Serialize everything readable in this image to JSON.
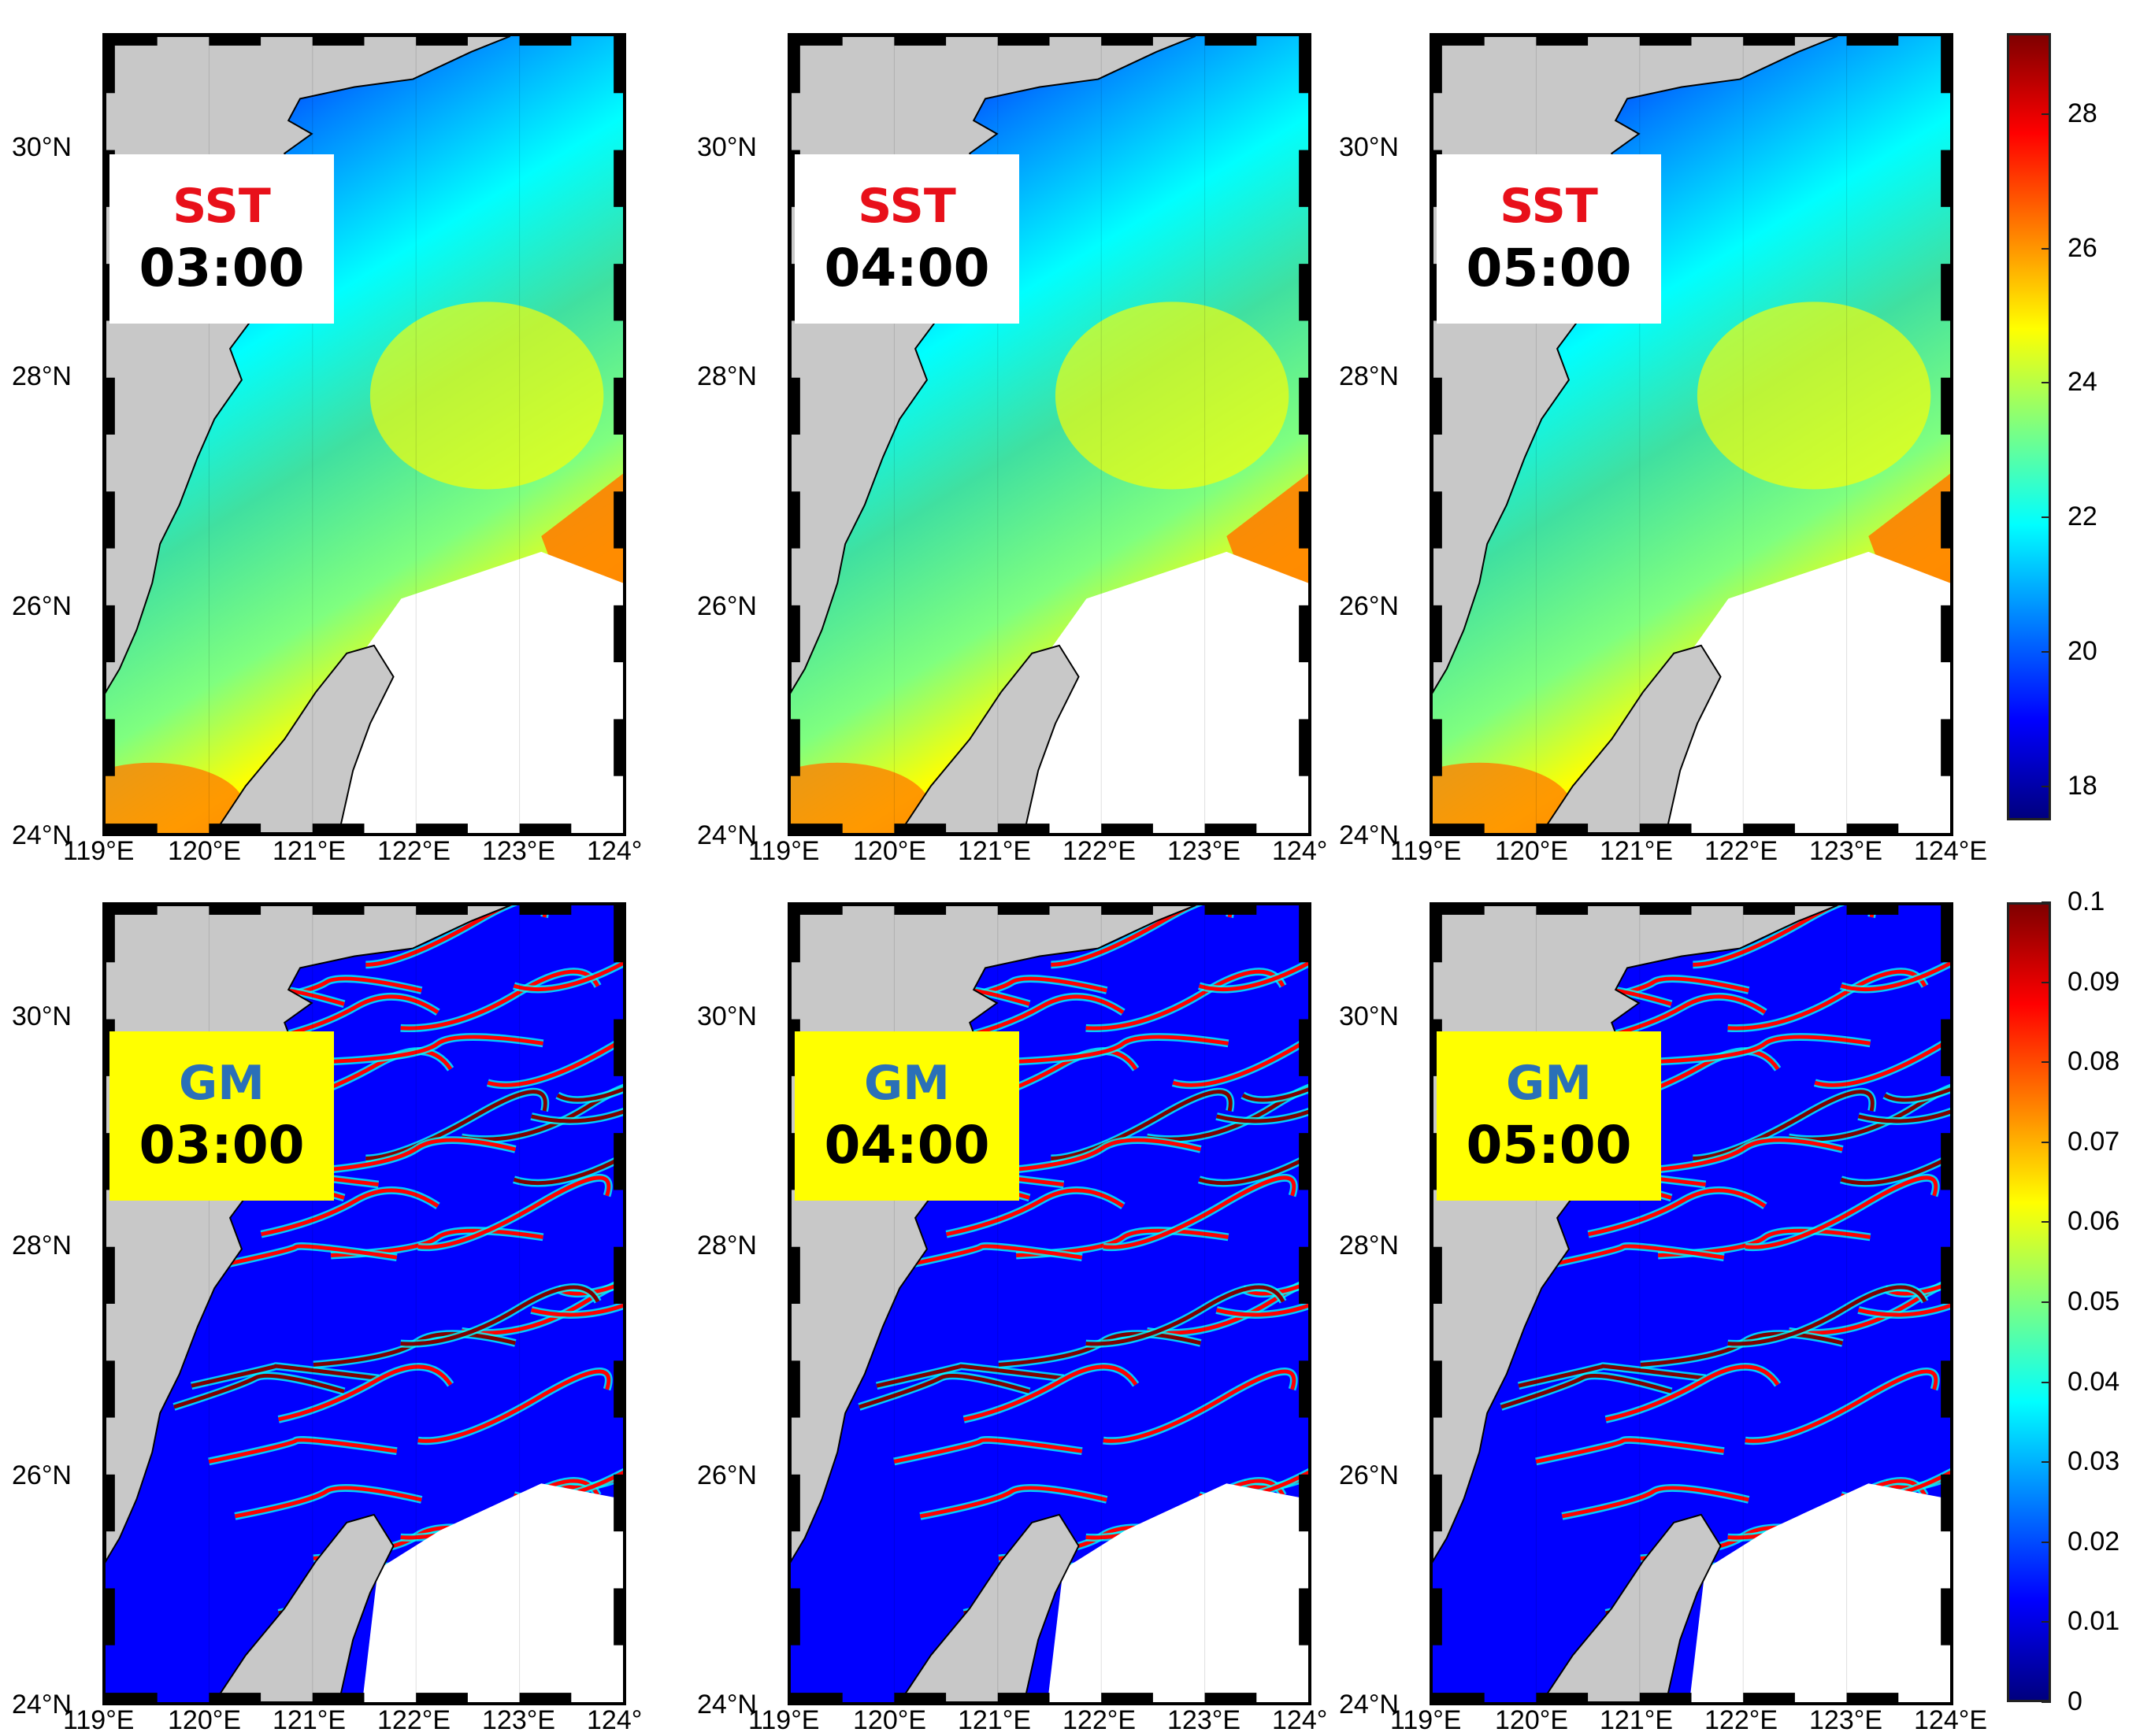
{
  "panels": [
    {
      "row": "sst",
      "var_label": "SST",
      "time_label": "03:00"
    },
    {
      "row": "sst",
      "var_label": "SST",
      "time_label": "04:00"
    },
    {
      "row": "sst",
      "var_label": "SST",
      "time_label": "05:00"
    },
    {
      "row": "gm",
      "var_label": "GM",
      "time_label": "03:00"
    },
    {
      "row": "gm",
      "var_label": "GM",
      "time_label": "04:00"
    },
    {
      "row": "gm",
      "var_label": "GM",
      "time_label": "05:00"
    }
  ],
  "lat_ticks": [
    "30°N",
    "28°N",
    "26°N",
    "24°N"
  ],
  "lon_ticks_left": [
    "119°E",
    "120°E",
    "121°E",
    "122°E",
    "123°E",
    "124°"
  ],
  "lon_ticks_right": [
    "119°E",
    "120°E",
    "121°E",
    "122°E",
    "123°E",
    "124°E"
  ],
  "sst_colorbar": {
    "ticks": [
      "28",
      "26",
      "24",
      "22",
      "20",
      "18"
    ],
    "min": 17.5,
    "max": 29.2
  },
  "gm_colorbar": {
    "ticks": [
      "0.1",
      "0.09",
      "0.08",
      "0.07",
      "0.06",
      "0.05",
      "0.04",
      "0.03",
      "0.02",
      "0.01",
      "0"
    ],
    "min": 0,
    "max": 0.1
  },
  "colors": {
    "sst_label": "#e8101a",
    "gm_label": "#2a70b8",
    "gm_box": "#ffff00",
    "land": "#c8c8c8",
    "jet": [
      "#00007f",
      "#0000ff",
      "#007fff",
      "#00ffff",
      "#7fff7f",
      "#ffff00",
      "#ff7f00",
      "#ff0000",
      "#7f0000"
    ]
  }
}
